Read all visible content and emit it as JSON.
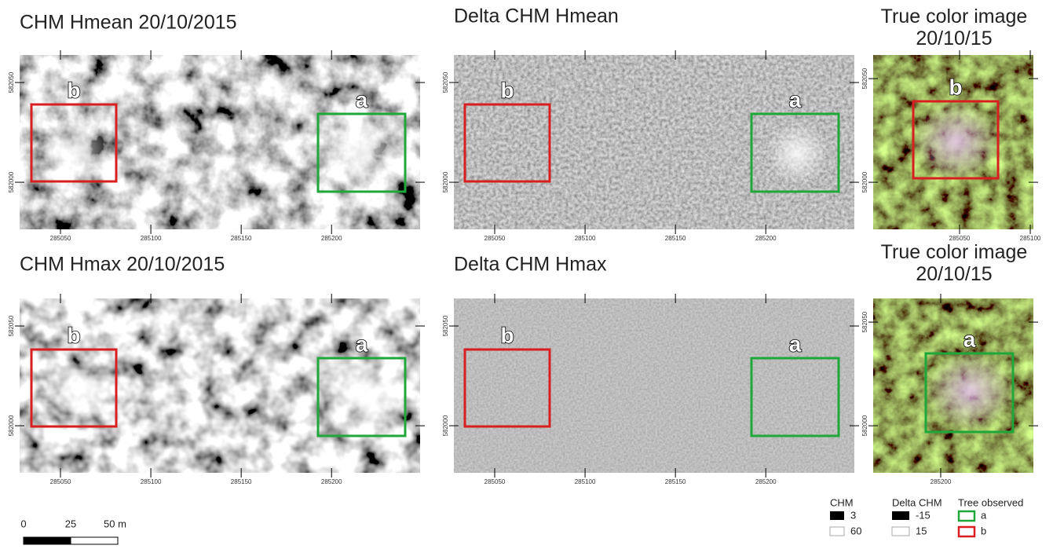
{
  "panels": [
    {
      "title": "CHM Hmean 20/10/2015",
      "kind": "chm",
      "box_labels": [
        "b",
        "a"
      ],
      "xlim": [
        285027.4,
        285249
      ],
      "ylim": [
        581976.4,
        582063.8
      ],
      "xticks": [
        285050,
        285100,
        285150,
        285200
      ],
      "yticks": [
        582050,
        582000
      ]
    },
    {
      "title": "Delta CHM Hmean",
      "kind": "delta",
      "box_labels": [
        "b",
        "a"
      ],
      "xlim": [
        285027.4,
        285249
      ],
      "ylim": [
        581976.4,
        582063.8
      ],
      "xticks": [
        285050,
        285100,
        285150,
        285200
      ],
      "yticks": [
        582050,
        582000
      ]
    },
    {
      "title": "True color image 20/10/15",
      "kind": "true",
      "box_labels": [
        "b"
      ],
      "xlim": [
        284988.9,
        285102.2
      ],
      "ylim": [
        581977.3,
        582061.4
      ],
      "xticks": [
        285050,
        285100
      ],
      "yticks": [
        582050,
        582000
      ]
    },
    {
      "title": "CHM Hmax 20/10/2015",
      "kind": "chm",
      "box_labels": [
        "b",
        "a"
      ],
      "xlim": [
        285027.4,
        285249
      ],
      "ylim": [
        581976.4,
        582063.8
      ],
      "xticks": [
        285050,
        285100,
        285150,
        285200
      ],
      "yticks": [
        582050,
        582000
      ]
    },
    {
      "title": "Delta CHM Hmax",
      "kind": "delta2",
      "box_labels": [
        "b",
        "a"
      ],
      "xlim": [
        285027.4,
        285249
      ],
      "ylim": [
        581976.4,
        582063.8
      ],
      "xticks": [
        285050,
        285100,
        285150,
        285200
      ],
      "yticks": [
        582050,
        582000
      ]
    },
    {
      "title": "True color image 20/10/15",
      "kind": "true",
      "box_labels": [
        "a"
      ],
      "xlim": [
        285152.2,
        285265.6
      ],
      "ylim": [
        581977.3,
        582061.4
      ],
      "xticks": [
        285200
      ],
      "yticks": [
        582050,
        582000
      ]
    }
  ],
  "scale_bar": {
    "labels": [
      "0",
      "25",
      "50 m"
    ]
  },
  "legend": {
    "chm": {
      "title": "CHM",
      "items": [
        "3",
        "60"
      ]
    },
    "delta": {
      "title": "Delta CHM",
      "items": [
        "-15",
        "15"
      ]
    },
    "trees": {
      "title": "Tree observed",
      "items": [
        "a",
        "b"
      ]
    }
  }
}
